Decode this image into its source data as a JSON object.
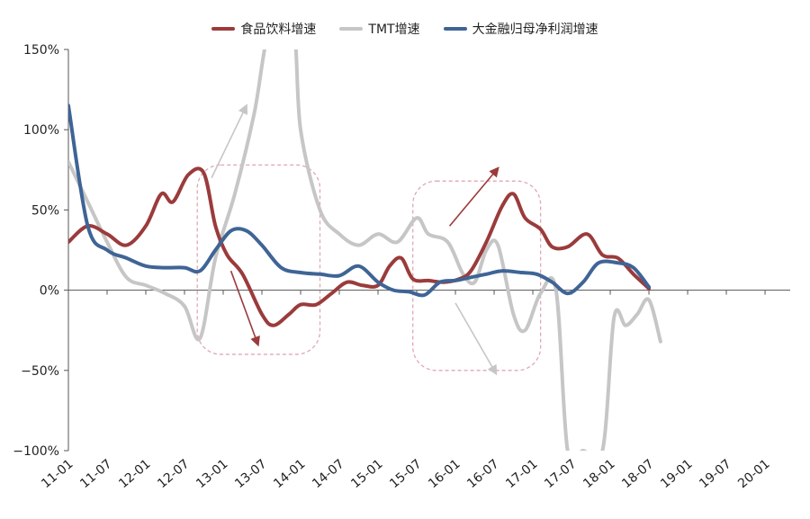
{
  "chart_data": {
    "type": "line",
    "title": "",
    "xlabel": "",
    "ylabel": "",
    "ylim": [
      -100,
      150
    ],
    "y_ticks": [
      150,
      100,
      50,
      0,
      -50,
      -100
    ],
    "y_tick_labels": [
      "150%",
      "100%",
      "50%",
      "0%",
      "−50%",
      "−100%"
    ],
    "x_tick_labels": [
      "11-01",
      "11-07",
      "12-01",
      "12-07",
      "13-01",
      "13-07",
      "14-01",
      "14-07",
      "15-01",
      "15-07",
      "16-01",
      "16-07",
      "17-01",
      "17-07",
      "18-01",
      "18-07",
      "19-01",
      "19-07",
      "20-01"
    ],
    "grid": false,
    "legend_position": "top-center",
    "series": [
      {
        "name": "食品饮料增速",
        "color": "#9b3b3b",
        "points": [
          [
            0,
            30
          ],
          [
            0.5,
            40
          ],
          [
            1,
            35
          ],
          [
            1.5,
            28
          ],
          [
            2,
            40
          ],
          [
            2.4,
            60
          ],
          [
            2.7,
            55
          ],
          [
            3.1,
            72
          ],
          [
            3.5,
            73
          ],
          [
            3.8,
            40
          ],
          [
            4.1,
            22
          ],
          [
            4.5,
            10
          ],
          [
            5,
            -15
          ],
          [
            5.3,
            -22
          ],
          [
            5.7,
            -15
          ],
          [
            6,
            -9
          ],
          [
            6.4,
            -9
          ],
          [
            6.8,
            -2
          ],
          [
            7.2,
            5
          ],
          [
            7.6,
            3
          ],
          [
            8,
            3
          ],
          [
            8.3,
            15
          ],
          [
            8.6,
            20
          ],
          [
            8.9,
            7
          ],
          [
            9.3,
            6
          ],
          [
            9.7,
            5
          ],
          [
            10.1,
            7
          ],
          [
            10.4,
            12
          ],
          [
            10.8,
            30
          ],
          [
            11.2,
            52
          ],
          [
            11.5,
            60
          ],
          [
            11.8,
            45
          ],
          [
            12.2,
            38
          ],
          [
            12.5,
            27
          ],
          [
            12.9,
            27
          ],
          [
            13.4,
            35
          ],
          [
            13.8,
            22
          ],
          [
            14.2,
            20
          ],
          [
            14.6,
            10
          ],
          [
            15,
            1
          ]
        ]
      },
      {
        "name": "TMT增速",
        "color": "#c6c6c6",
        "points": [
          [
            0,
            80
          ],
          [
            0.5,
            55
          ],
          [
            1,
            30
          ],
          [
            1.5,
            8
          ],
          [
            2,
            3
          ],
          [
            2.5,
            -2
          ],
          [
            3,
            -10
          ],
          [
            3.4,
            -30
          ],
          [
            3.8,
            20
          ],
          [
            4.3,
            60
          ],
          [
            4.8,
            110
          ],
          [
            5.2,
            162
          ],
          [
            5.8,
            165
          ],
          [
            6,
            100
          ],
          [
            6.5,
            50
          ],
          [
            7,
            35
          ],
          [
            7.5,
            28
          ],
          [
            8,
            35
          ],
          [
            8.5,
            30
          ],
          [
            9,
            45
          ],
          [
            9.3,
            35
          ],
          [
            9.8,
            30
          ],
          [
            10.2,
            10
          ],
          [
            10.5,
            5
          ],
          [
            10.8,
            25
          ],
          [
            11.1,
            28
          ],
          [
            11.5,
            -15
          ],
          [
            11.8,
            -25
          ],
          [
            12.2,
            -2
          ],
          [
            12.6,
            0
          ],
          [
            12.9,
            -100
          ],
          [
            13.3,
            -100
          ],
          [
            13.8,
            -100
          ],
          [
            14.1,
            -17
          ],
          [
            14.4,
            -22
          ],
          [
            14.7,
            -15
          ],
          [
            15,
            -6
          ],
          [
            15.3,
            -32
          ]
        ]
      },
      {
        "name": "大金融归母净利润增速",
        "color": "#3f6496",
        "points": [
          [
            0,
            115
          ],
          [
            0.5,
            40
          ],
          [
            1,
            25
          ],
          [
            1.5,
            20
          ],
          [
            2,
            15
          ],
          [
            2.5,
            14
          ],
          [
            3,
            14
          ],
          [
            3.4,
            12
          ],
          [
            3.8,
            25
          ],
          [
            4.2,
            37
          ],
          [
            4.6,
            37
          ],
          [
            5,
            28
          ],
          [
            5.5,
            14
          ],
          [
            6,
            11
          ],
          [
            6.5,
            10
          ],
          [
            7,
            9
          ],
          [
            7.5,
            15
          ],
          [
            8,
            5
          ],
          [
            8.4,
            0
          ],
          [
            8.8,
            -1
          ],
          [
            9.2,
            -3
          ],
          [
            9.6,
            5
          ],
          [
            10,
            6
          ],
          [
            10.4,
            8
          ],
          [
            10.8,
            10
          ],
          [
            11.2,
            12
          ],
          [
            11.7,
            11
          ],
          [
            12.1,
            10
          ],
          [
            12.5,
            5
          ],
          [
            12.9,
            -2
          ],
          [
            13.3,
            5
          ],
          [
            13.7,
            17
          ],
          [
            14.2,
            17
          ],
          [
            14.6,
            14
          ],
          [
            15,
            2
          ]
        ]
      }
    ],
    "annotations": [
      {
        "type": "dashed-box",
        "x": [
          3.33,
          6.5
        ],
        "y": [
          -40,
          78
        ]
      },
      {
        "type": "dashed-box",
        "x": [
          8.9,
          12.2
        ],
        "y": [
          -50,
          68
        ]
      },
      {
        "type": "arrow",
        "from": [
          3.7,
          70
        ],
        "to": [
          4.6,
          115
        ],
        "color": "#c6c6c6"
      },
      {
        "type": "arrow",
        "from": [
          4.2,
          12
        ],
        "to": [
          4.9,
          -34
        ],
        "color": "#9b3b3b"
      },
      {
        "type": "arrow",
        "from": [
          9.85,
          40
        ],
        "to": [
          11.1,
          76
        ],
        "color": "#9b3b3b"
      },
      {
        "type": "arrow",
        "from": [
          10,
          -8
        ],
        "to": [
          11.05,
          -52
        ],
        "color": "#c6c6c6"
      }
    ]
  }
}
